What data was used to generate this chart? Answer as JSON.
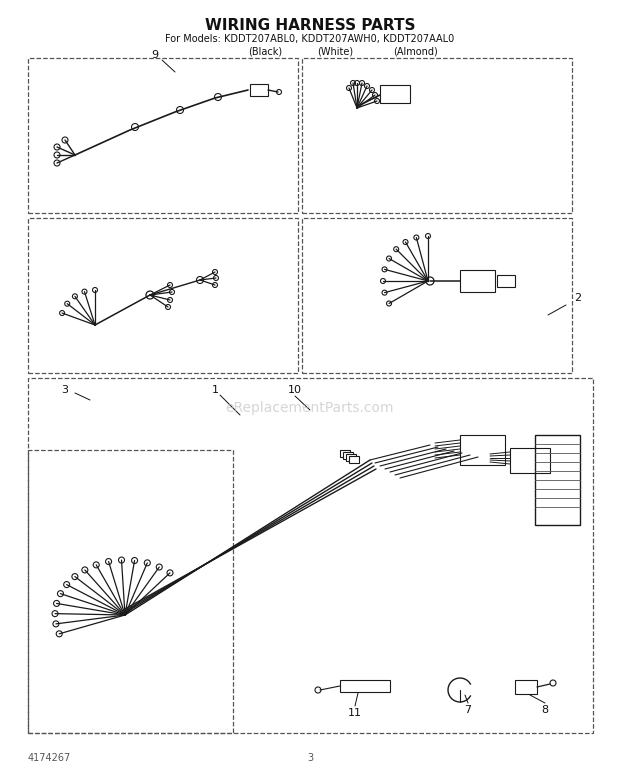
{
  "title": "WIRING HARNESS PARTS",
  "subtitle_line1": "For Models: KDDT207ABL0, KDDT207AWH0, KDDT207AAL0",
  "subtitle_line2_black": "(Black)",
  "subtitle_line2_white": "(White)",
  "subtitle_line2_almond": "(Almond)",
  "bg_color": "#ffffff",
  "diagram_color": "#1a1a1a",
  "watermark": "eReplacementParts.com",
  "part_number": "4174267",
  "page_number": "3",
  "dash_color": "#555555",
  "label_color": "#111111"
}
